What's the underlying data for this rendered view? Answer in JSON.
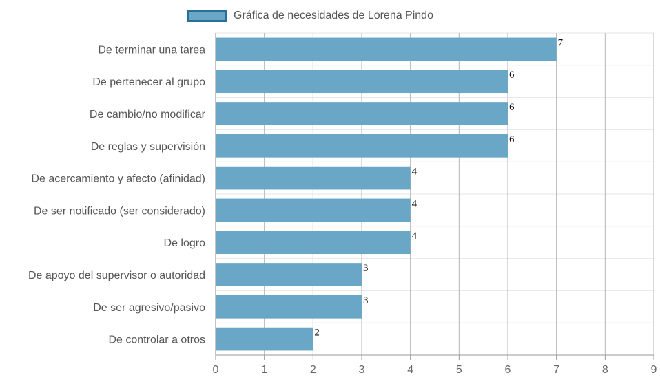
{
  "chart_data": {
    "type": "bar",
    "orientation": "horizontal",
    "categories": [
      "De terminar una tarea",
      "De pertenecer al grupo",
      "De cambio/no modificar",
      "De reglas y supervisión",
      "De acercamiento y afecto (afinidad)",
      "De ser notificado (ser considerado)",
      "De logro",
      "De apoyo del supervisor o autoridad",
      "De ser agresivo/pasivo",
      "De controlar a otros"
    ],
    "series": [
      {
        "name": "Gráfica de necesidades de Lorena Pindo",
        "values": [
          7,
          6,
          6,
          6,
          4,
          4,
          4,
          3,
          3,
          2
        ],
        "color": "#6aa6c6",
        "border_color": "#2b6f99"
      }
    ],
    "xlim": [
      0,
      9
    ],
    "x_ticks": [
      "0",
      "1",
      "2",
      "3",
      "4",
      "5",
      "6",
      "7",
      "8",
      "9"
    ],
    "data_labels": [
      "7",
      "6",
      "6",
      "6",
      "4",
      "4",
      "4",
      "3",
      "3",
      "2"
    ],
    "legend_position": "top",
    "grid": true,
    "xlabel": "",
    "ylabel": ""
  }
}
